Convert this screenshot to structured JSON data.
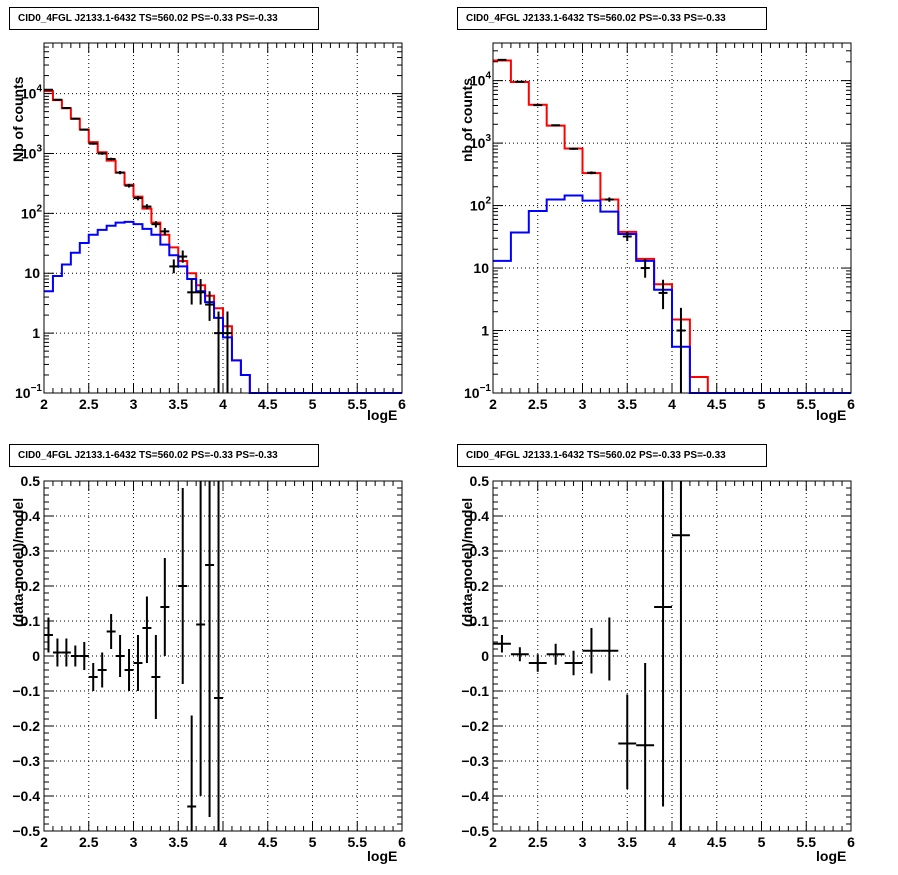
{
  "chart_data": [
    {
      "type": "line",
      "title": "CID0_4FGL J2133.1-6432 TS=560.02 PS=-0.33 PS=-0.33",
      "xlabel": "logE",
      "ylabel": "Nb of counts",
      "yscale": "log",
      "xlim": [
        2,
        6
      ],
      "ylim": [
        0.1,
        70000
      ],
      "grid": true,
      "x_ticks": [
        "2",
        "2.5",
        "3",
        "3.5",
        "4",
        "4.5",
        "5",
        "5.5",
        "6"
      ],
      "y_ticks": [
        {
          "v": 0.1,
          "label": "10",
          "exp": "−1"
        },
        {
          "v": 1,
          "label": "1",
          "exp": ""
        },
        {
          "v": 10,
          "label": "10",
          "exp": ""
        },
        {
          "v": 100,
          "label": "10",
          "exp": "2"
        },
        {
          "v": 1000,
          "label": "10",
          "exp": "3"
        },
        {
          "v": 10000,
          "label": "10",
          "exp": "4"
        }
      ],
      "bin_edges": [
        2.0,
        2.1,
        2.2,
        2.3,
        2.4,
        2.5,
        2.6,
        2.7,
        2.8,
        2.9,
        3.0,
        3.1,
        3.2,
        3.3,
        3.4,
        3.5,
        3.6,
        3.7,
        3.8,
        3.9,
        4.0,
        4.1,
        4.2,
        4.3,
        4.4,
        4.5,
        4.6,
        4.7,
        4.8,
        4.9,
        5.0,
        5.1,
        5.2,
        5.3,
        5.4,
        5.5,
        5.6,
        5.7,
        5.8,
        5.9,
        6.0
      ],
      "series": [
        {
          "name": "",
          "color": "#ff0000",
          "style": "step",
          "values": [
            11000,
            7800,
            5700,
            3800,
            2500,
            1550,
            1050,
            760,
            480,
            300,
            190,
            120,
            70,
            44,
            27,
            16,
            10,
            6.3,
            4.2,
            2.6,
            1.3,
            0.35,
            0.2,
            0.1,
            0.1,
            0.1,
            0.1,
            0.1,
            0.1,
            0.1,
            0.1,
            0.1,
            0.1,
            0.1,
            0.1,
            0.1,
            0.1,
            0.1,
            0.1,
            0.1
          ]
        },
        {
          "name": "",
          "color": "#0000ff",
          "style": "step",
          "values": [
            5,
            9,
            14,
            22,
            32,
            44,
            53,
            62,
            70,
            72,
            66,
            55,
            44,
            30,
            20,
            13,
            8,
            5,
            3.3,
            1.8,
            0.85,
            0.35,
            0.2,
            0.1,
            0.1,
            0.1,
            0.1,
            0.1,
            0.1,
            0.1,
            0.1,
            0.1,
            0.1,
            0.1,
            0.1,
            0.1,
            0.1,
            0.1,
            0.1,
            0.1
          ]
        },
        {
          "name": "",
          "color": "#000000",
          "style": "errorbar",
          "points": [
            {
              "x": 2.05,
              "y": 11600,
              "lo": 11400,
              "hi": 11800
            },
            {
              "x": 2.15,
              "y": 7900,
              "lo": 7750,
              "hi": 8050
            },
            {
              "x": 2.25,
              "y": 5750,
              "lo": 5620,
              "hi": 5880
            },
            {
              "x": 2.35,
              "y": 3810,
              "lo": 3700,
              "hi": 3920
            },
            {
              "x": 2.45,
              "y": 2500,
              "lo": 2420,
              "hi": 2580
            },
            {
              "x": 2.55,
              "y": 1460,
              "lo": 1400,
              "hi": 1520
            },
            {
              "x": 2.65,
              "y": 1000,
              "lo": 950,
              "hi": 1050
            },
            {
              "x": 2.75,
              "y": 810,
              "lo": 770,
              "hi": 850
            },
            {
              "x": 2.85,
              "y": 480,
              "lo": 450,
              "hi": 510
            },
            {
              "x": 2.95,
              "y": 290,
              "lo": 270,
              "hi": 310
            },
            {
              "x": 3.05,
              "y": 180,
              "lo": 165,
              "hi": 195
            },
            {
              "x": 3.15,
              "y": 130,
              "lo": 118,
              "hi": 142
            },
            {
              "x": 3.25,
              "y": 66,
              "lo": 58,
              "hi": 74
            },
            {
              "x": 3.35,
              "y": 50,
              "lo": 43,
              "hi": 57
            },
            {
              "x": 3.45,
              "y": 13,
              "lo": 10,
              "hi": 17
            },
            {
              "x": 3.55,
              "y": 19,
              "lo": 15,
              "hi": 24
            },
            {
              "x": 3.65,
              "y": 4.8,
              "lo": 3,
              "hi": 8
            },
            {
              "x": 3.75,
              "y": 4.8,
              "lo": 3,
              "hi": 8
            },
            {
              "x": 3.85,
              "y": 3,
              "lo": 1.6,
              "hi": 5
            },
            {
              "x": 3.95,
              "y": 1,
              "lo": 0.1,
              "hi": 2.3
            },
            {
              "x": 4.05,
              "y": 1,
              "lo": 0.1,
              "hi": 2.3
            }
          ]
        }
      ]
    },
    {
      "type": "line",
      "title": "CID0_4FGL J2133.1-6432 TS=560.02 PS=-0.33 PS=-0.33",
      "xlabel": "logE",
      "ylabel": "nb of counts",
      "yscale": "log",
      "xlim": [
        2,
        6
      ],
      "ylim": [
        0.1,
        40000
      ],
      "grid": true,
      "x_ticks": [
        "2",
        "2.5",
        "3",
        "3.5",
        "4",
        "4.5",
        "5",
        "5.5",
        "6"
      ],
      "y_ticks": [
        {
          "v": 0.1,
          "label": "10",
          "exp": "−1"
        },
        {
          "v": 1,
          "label": "1",
          "exp": ""
        },
        {
          "v": 10,
          "label": "10",
          "exp": ""
        },
        {
          "v": 100,
          "label": "10",
          "exp": "2"
        },
        {
          "v": 1000,
          "label": "10",
          "exp": "3"
        },
        {
          "v": 10000,
          "label": "10",
          "exp": "4"
        }
      ],
      "bin_edges": [
        2.0,
        2.2,
        2.4,
        2.6,
        2.8,
        3.0,
        3.2,
        3.4,
        3.6,
        3.8,
        4.0,
        4.2,
        4.4,
        4.6,
        4.8,
        5.0,
        5.2,
        5.4,
        5.6,
        5.8,
        6.0
      ],
      "series": [
        {
          "name": "",
          "color": "#ff0000",
          "style": "step",
          "values": [
            21000,
            9500,
            4100,
            1900,
            820,
            330,
            125,
            38,
            14,
            5.5,
            1.5,
            0.18,
            0.1,
            0.1,
            0.1,
            0.1,
            0.1,
            0.1,
            0.1,
            0.1
          ]
        },
        {
          "name": "",
          "color": "#0000ff",
          "style": "step",
          "values": [
            13,
            37,
            82,
            125,
            145,
            120,
            80,
            35,
            13,
            4.5,
            0.55,
            0.1,
            0.1,
            0.1,
            0.1,
            0.1,
            0.1,
            0.1,
            0.1,
            0.1
          ]
        },
        {
          "name": "",
          "color": "#000000",
          "style": "errorbar",
          "points": [
            {
              "x": 2.1,
              "y": 21500,
              "lo": 21300,
              "hi": 21700
            },
            {
              "x": 2.3,
              "y": 9600,
              "lo": 9450,
              "hi": 9750
            },
            {
              "x": 2.5,
              "y": 4050,
              "lo": 3950,
              "hi": 4150
            },
            {
              "x": 2.7,
              "y": 1930,
              "lo": 1880,
              "hi": 1980
            },
            {
              "x": 2.9,
              "y": 810,
              "lo": 780,
              "hi": 840
            },
            {
              "x": 3.1,
              "y": 335,
              "lo": 318,
              "hi": 352
            },
            {
              "x": 3.3,
              "y": 125,
              "lo": 115,
              "hi": 135
            },
            {
              "x": 3.5,
              "y": 32,
              "lo": 27,
              "hi": 38
            },
            {
              "x": 3.7,
              "y": 10,
              "lo": 7,
              "hi": 14
            },
            {
              "x": 3.9,
              "y": 4,
              "lo": 2.2,
              "hi": 6.5
            },
            {
              "x": 4.1,
              "y": 1,
              "lo": 0.1,
              "hi": 2.3
            }
          ]
        }
      ]
    },
    {
      "type": "scatter",
      "title": "CID0_4FGL J2133.1-6432 TS=560.02 PS=-0.33 PS=-0.33",
      "xlabel": "logE",
      "ylabel": "(data-model)/model",
      "yscale": "linear",
      "xlim": [
        2,
        6
      ],
      "ylim": [
        -0.5,
        0.5
      ],
      "grid": true,
      "x_ticks": [
        "2",
        "2.5",
        "3",
        "3.5",
        "4",
        "4.5",
        "5",
        "5.5",
        "6"
      ],
      "y_ticks": [
        {
          "v": -0.5,
          "label": "−0.5"
        },
        {
          "v": -0.4,
          "label": "−0.4"
        },
        {
          "v": -0.3,
          "label": "−0.3"
        },
        {
          "v": -0.2,
          "label": "−0.2"
        },
        {
          "v": -0.1,
          "label": "−0.1"
        },
        {
          "v": 0,
          "label": "0"
        },
        {
          "v": 0.1,
          "label": "0.1"
        },
        {
          "v": 0.2,
          "label": "0.2"
        },
        {
          "v": 0.3,
          "label": "0.3"
        },
        {
          "v": 0.4,
          "label": "0.4"
        },
        {
          "v": 0.5,
          "label": "0.5"
        }
      ],
      "points": [
        {
          "x": 2.05,
          "y": 0.06,
          "lo": 0.01,
          "hi": 0.11,
          "dx": 0.05
        },
        {
          "x": 2.15,
          "y": 0.01,
          "lo": -0.03,
          "hi": 0.05,
          "dx": 0.05
        },
        {
          "x": 2.25,
          "y": 0.01,
          "lo": -0.03,
          "hi": 0.05,
          "dx": 0.05
        },
        {
          "x": 2.35,
          "y": 0.0,
          "lo": -0.03,
          "hi": 0.03,
          "dx": 0.05
        },
        {
          "x": 2.45,
          "y": 0.0,
          "lo": -0.04,
          "hi": 0.04,
          "dx": 0.05
        },
        {
          "x": 2.55,
          "y": -0.06,
          "lo": -0.1,
          "hi": -0.02,
          "dx": 0.05
        },
        {
          "x": 2.65,
          "y": -0.04,
          "lo": -0.09,
          "hi": 0.01,
          "dx": 0.05
        },
        {
          "x": 2.75,
          "y": 0.07,
          "lo": 0.02,
          "hi": 0.12,
          "dx": 0.05
        },
        {
          "x": 2.85,
          "y": 0.0,
          "lo": -0.06,
          "hi": 0.06,
          "dx": 0.05
        },
        {
          "x": 2.95,
          "y": -0.04,
          "lo": -0.1,
          "hi": 0.02,
          "dx": 0.05
        },
        {
          "x": 3.05,
          "y": -0.02,
          "lo": -0.1,
          "hi": 0.06,
          "dx": 0.05
        },
        {
          "x": 3.15,
          "y": 0.08,
          "lo": -0.02,
          "hi": 0.17,
          "dx": 0.05
        },
        {
          "x": 3.25,
          "y": -0.06,
          "lo": -0.18,
          "hi": 0.06,
          "dx": 0.05
        },
        {
          "x": 3.35,
          "y": 0.14,
          "lo": 0.0,
          "hi": 0.28,
          "dx": 0.05
        },
        {
          "x": 3.55,
          "y": 0.2,
          "lo": -0.08,
          "hi": 0.48,
          "dx": 0.05
        },
        {
          "x": 3.65,
          "y": -0.43,
          "lo": -0.7,
          "hi": -0.17,
          "dx": 0.05
        },
        {
          "x": 3.75,
          "y": 0.09,
          "lo": -0.4,
          "hi": 0.58,
          "dx": 0.05
        },
        {
          "x": 3.85,
          "y": 0.26,
          "lo": -0.46,
          "hi": 0.98,
          "dx": 0.05
        },
        {
          "x": 3.95,
          "y": -0.12,
          "lo": -1.2,
          "hi": 0.96,
          "dx": 0.05
        }
      ]
    },
    {
      "type": "scatter",
      "title": "CID0_4FGL J2133.1-6432 TS=560.02 PS=-0.33 PS=-0.33",
      "xlabel": "logE",
      "ylabel": "(data-model)/model",
      "yscale": "linear",
      "xlim": [
        2,
        6
      ],
      "ylim": [
        -0.5,
        0.5
      ],
      "grid": true,
      "x_ticks": [
        "2",
        "2.5",
        "3",
        "3.5",
        "4",
        "4.5",
        "5",
        "5.5",
        "6"
      ],
      "y_ticks": [
        {
          "v": -0.5,
          "label": "−0.5"
        },
        {
          "v": -0.4,
          "label": "−0.4"
        },
        {
          "v": -0.3,
          "label": "−0.3"
        },
        {
          "v": -0.2,
          "label": "−0.2"
        },
        {
          "v": -0.1,
          "label": "−0.1"
        },
        {
          "v": 0,
          "label": "0"
        },
        {
          "v": 0.1,
          "label": "0.1"
        },
        {
          "v": 0.2,
          "label": "0.2"
        },
        {
          "v": 0.3,
          "label": "0.3"
        },
        {
          "v": 0.4,
          "label": "0.4"
        },
        {
          "v": 0.5,
          "label": "0.5"
        }
      ],
      "points": [
        {
          "x": 2.1,
          "y": 0.035,
          "lo": 0.01,
          "hi": 0.06,
          "dx": 0.1
        },
        {
          "x": 2.3,
          "y": 0.005,
          "lo": -0.015,
          "hi": 0.025,
          "dx": 0.1
        },
        {
          "x": 2.5,
          "y": -0.02,
          "lo": -0.045,
          "hi": 0.005,
          "dx": 0.1
        },
        {
          "x": 2.7,
          "y": 0.005,
          "lo": -0.025,
          "hi": 0.035,
          "dx": 0.1
        },
        {
          "x": 2.9,
          "y": -0.02,
          "lo": -0.055,
          "hi": 0.015,
          "dx": 0.1
        },
        {
          "x": 3.1,
          "y": 0.015,
          "lo": -0.05,
          "hi": 0.08,
          "dx": 0.1
        },
        {
          "x": 3.3,
          "y": 0.015,
          "lo": -0.07,
          "hi": 0.11,
          "dx": 0.1
        },
        {
          "x": 3.5,
          "y": -0.25,
          "lo": -0.38,
          "hi": -0.11,
          "dx": 0.1
        },
        {
          "x": 3.7,
          "y": -0.255,
          "lo": -0.5,
          "hi": -0.02,
          "dx": 0.1
        },
        {
          "x": 3.9,
          "y": 0.14,
          "lo": -0.43,
          "hi": 0.71,
          "dx": 0.1
        },
        {
          "x": 4.1,
          "y": 0.345,
          "lo": -0.66,
          "hi": 1.35,
          "dx": 0.1
        }
      ]
    }
  ]
}
